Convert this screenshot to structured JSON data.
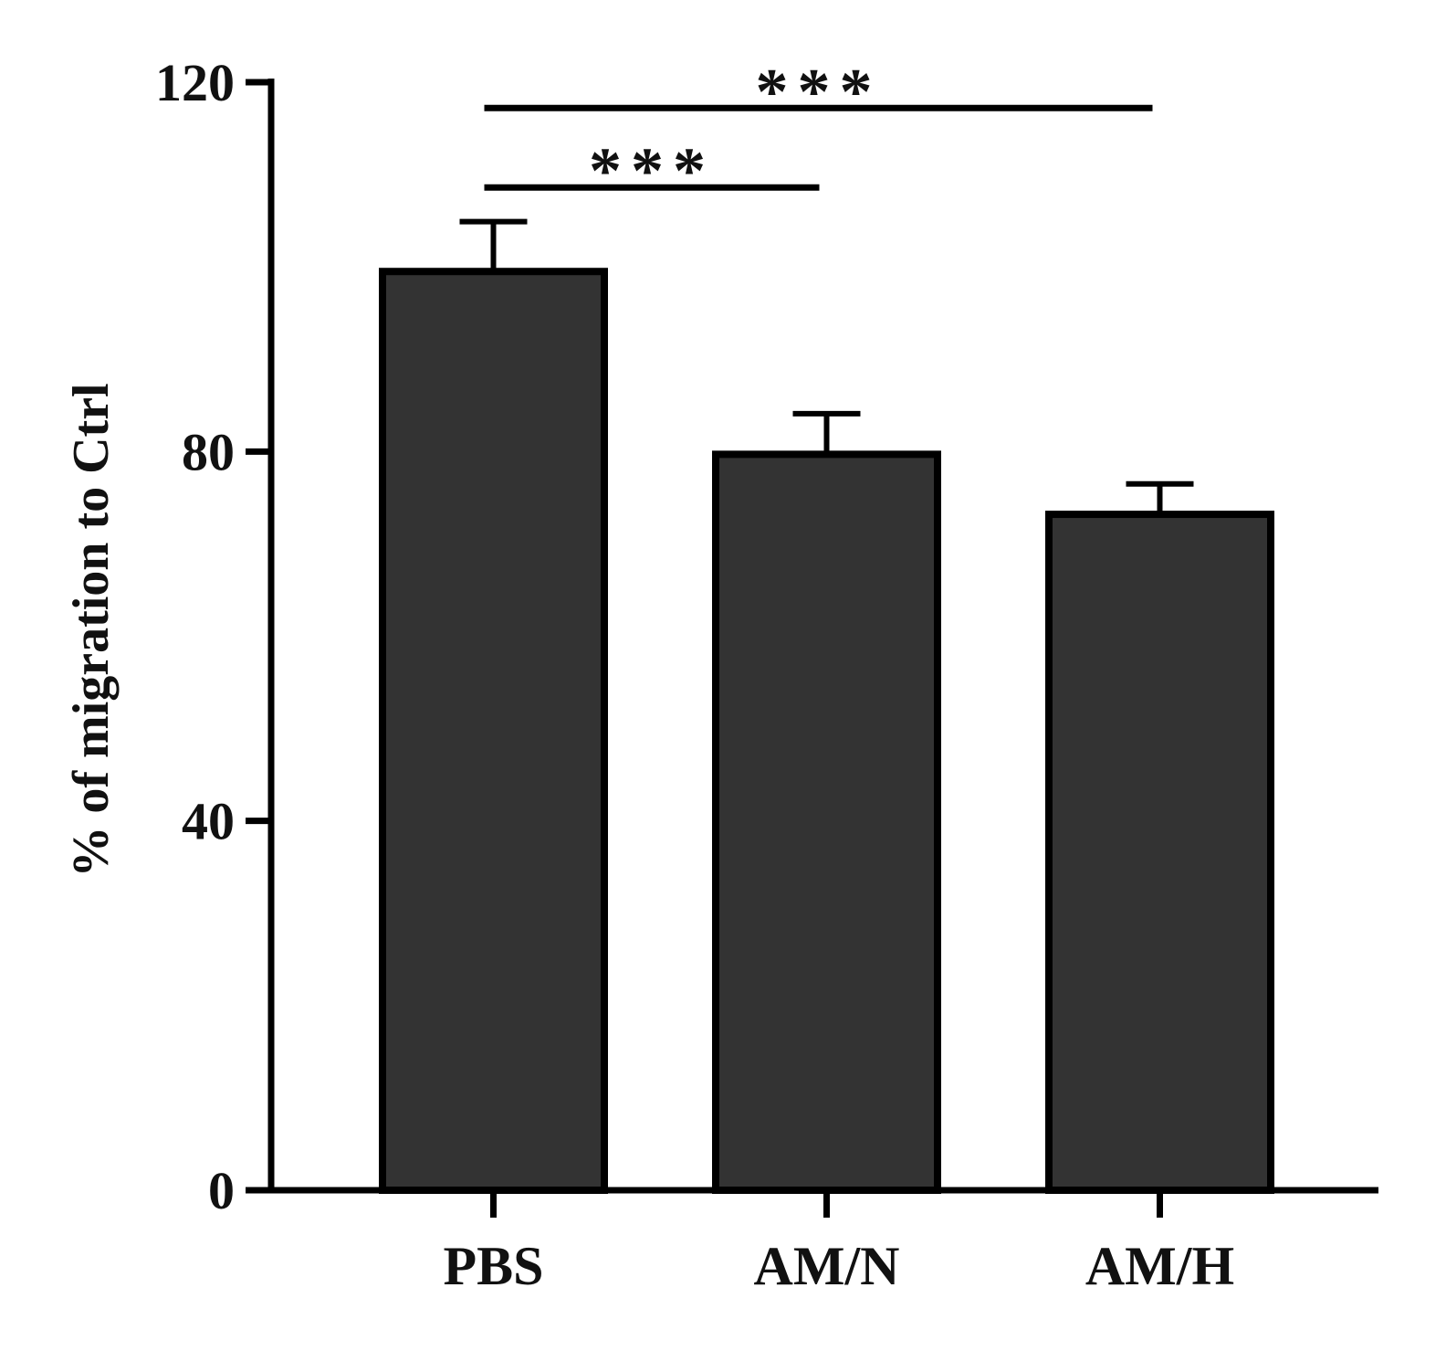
{
  "chart_data": {
    "type": "bar",
    "ylabel": "% of migration to Ctrl",
    "categories": [
      "PBS",
      "AM/N",
      "AM/H"
    ],
    "values": [
      99.5,
      79.7,
      73.2
    ],
    "errors": [
      5.4,
      4.4,
      3.3
    ],
    "color": "#333333",
    "ylim": [
      0,
      120
    ],
    "yticks": [
      0,
      40,
      80,
      120
    ],
    "annotations": [
      {
        "text": "***",
        "between": [
          0,
          1
        ],
        "y": 108.6
      },
      {
        "text": "***",
        "between": [
          0,
          2
        ],
        "y": 117.2
      }
    ]
  }
}
